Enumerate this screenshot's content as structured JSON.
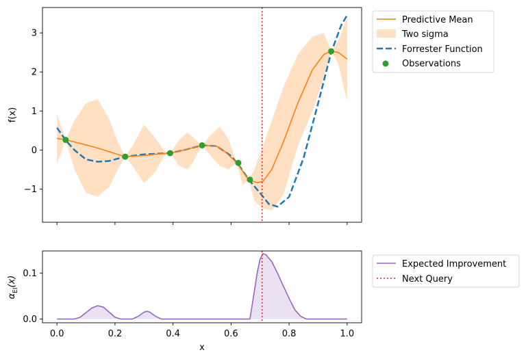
{
  "chart_data": [
    {
      "type": "line",
      "xlabel": "",
      "ylabel": "f(x)",
      "xlim": [
        -0.05,
        1.05
      ],
      "ylim": [
        -1.85,
        3.65
      ],
      "xticks": [
        0.0,
        0.2,
        0.4,
        0.6,
        0.8,
        1.0
      ],
      "yticks": [
        -1,
        0,
        1,
        2,
        3
      ],
      "ytick_labels": [
        "−1",
        "0",
        "1",
        "2",
        "3"
      ],
      "legend_position": "outside upper-right",
      "next_query_x": 0.707,
      "series": [
        {
          "name": "Predictive Mean",
          "style": "solid",
          "color": "#ff7f0e",
          "x": [
            0.0,
            0.03,
            0.08,
            0.14,
            0.2,
            0.235,
            0.3,
            0.35,
            0.39,
            0.45,
            0.5,
            0.55,
            0.58,
            0.62,
            0.66,
            0.69,
            0.71,
            0.74,
            0.78,
            0.83,
            0.88,
            0.92,
            0.945,
            0.97,
            1.0
          ],
          "y": [
            0.3,
            0.26,
            0.17,
            0.05,
            -0.09,
            -0.17,
            -0.14,
            -0.1,
            -0.08,
            0.02,
            0.12,
            0.1,
            -0.05,
            -0.33,
            -0.76,
            -0.84,
            -0.8,
            -0.5,
            0.2,
            1.2,
            2.05,
            2.45,
            2.53,
            2.5,
            2.33
          ]
        },
        {
          "name": "Two sigma",
          "style": "band",
          "color": "#ffe0c2",
          "x": [
            0.0,
            0.03,
            0.06,
            0.1,
            0.14,
            0.18,
            0.21,
            0.235,
            0.26,
            0.3,
            0.34,
            0.37,
            0.39,
            0.42,
            0.45,
            0.47,
            0.5,
            0.53,
            0.56,
            0.59,
            0.62,
            0.64,
            0.66,
            0.68,
            0.71,
            0.74,
            0.78,
            0.83,
            0.88,
            0.92,
            0.945,
            0.97,
            1.0
          ],
          "upper": [
            0.92,
            0.26,
            0.75,
            1.2,
            1.3,
            0.8,
            0.2,
            -0.17,
            0.1,
            0.65,
            0.3,
            -0.02,
            -0.08,
            0.25,
            0.45,
            0.32,
            0.12,
            0.38,
            0.6,
            0.3,
            -0.33,
            -0.5,
            -0.76,
            -0.5,
            0.1,
            0.75,
            1.6,
            2.45,
            2.9,
            3.0,
            2.53,
            2.8,
            3.4
          ],
          "lower": [
            -0.35,
            0.26,
            -0.5,
            -1.1,
            -1.2,
            -0.95,
            -0.5,
            -0.17,
            -0.4,
            -0.85,
            -0.55,
            -0.15,
            -0.08,
            -0.4,
            -0.5,
            -0.3,
            0.12,
            -0.15,
            -0.4,
            -0.5,
            -0.33,
            -0.9,
            -0.76,
            -1.3,
            -1.5,
            -1.55,
            -1.15,
            0.1,
            1.0,
            1.85,
            2.53,
            2.2,
            1.25
          ]
        },
        {
          "name": "Forrester Function",
          "style": "dashed",
          "color": "#1f77b4",
          "x": [
            0.0,
            0.03,
            0.06,
            0.1,
            0.14,
            0.18,
            0.235,
            0.3,
            0.39,
            0.45,
            0.5,
            0.55,
            0.6,
            0.63,
            0.66,
            0.7,
            0.73,
            0.76,
            0.8,
            0.85,
            0.9,
            0.945,
            0.98,
            1.0
          ],
          "y": [
            0.57,
            0.25,
            0.0,
            -0.24,
            -0.3,
            -0.28,
            -0.17,
            -0.11,
            -0.08,
            0.02,
            0.12,
            0.1,
            -0.15,
            -0.42,
            -0.75,
            -1.1,
            -1.38,
            -1.45,
            -1.2,
            -0.2,
            1.2,
            2.5,
            3.2,
            3.45
          ]
        },
        {
          "name": "Observations",
          "style": "points",
          "color": "#2ca02c",
          "x": [
            0.03,
            0.235,
            0.39,
            0.5,
            0.625,
            0.665,
            0.945
          ],
          "y": [
            0.26,
            -0.17,
            -0.08,
            0.12,
            -0.33,
            -0.76,
            2.53
          ]
        }
      ]
    },
    {
      "type": "area",
      "xlabel": "x",
      "ylabel": "α_EI(x)",
      "ylabel_main": "α",
      "ylabel_sub": "EI",
      "ylabel_tail": "(x)",
      "xlim": [
        -0.05,
        1.05
      ],
      "ylim": [
        -0.008,
        0.148
      ],
      "xticks": [
        0.0,
        0.2,
        0.4,
        0.6,
        0.8,
        1.0
      ],
      "xtick_labels": [
        "0.0",
        "0.2",
        "0.4",
        "0.6",
        "0.8",
        "1.0"
      ],
      "yticks": [
        0.0,
        0.1
      ],
      "ytick_labels": [
        "0.0",
        "0.1"
      ],
      "legend_position": "outside upper-right",
      "next_query_x": 0.707,
      "series": [
        {
          "name": "Expected Improvement",
          "color": "#9467bd",
          "x": [
            0.0,
            0.06,
            0.08,
            0.1,
            0.12,
            0.14,
            0.16,
            0.18,
            0.2,
            0.22,
            0.26,
            0.28,
            0.3,
            0.31,
            0.32,
            0.34,
            0.36,
            0.4,
            0.5,
            0.6,
            0.66,
            0.665,
            0.68,
            0.69,
            0.7,
            0.71,
            0.72,
            0.74,
            0.76,
            0.78,
            0.8,
            0.82,
            0.84,
            0.86,
            0.9,
            1.0
          ],
          "y": [
            0.0,
            0.0,
            0.004,
            0.014,
            0.024,
            0.029,
            0.026,
            0.015,
            0.004,
            0.0,
            0.0,
            0.006,
            0.015,
            0.017,
            0.015,
            0.006,
            0.0,
            0.0,
            0.0,
            0.0,
            0.0,
            0.0,
            0.06,
            0.1,
            0.13,
            0.142,
            0.14,
            0.125,
            0.1,
            0.072,
            0.045,
            0.02,
            0.006,
            0.0,
            0.0,
            0.0
          ]
        },
        {
          "name": "Next Query",
          "style": "dotted",
          "color": "#d62728",
          "x": 0.707
        }
      ]
    }
  ]
}
